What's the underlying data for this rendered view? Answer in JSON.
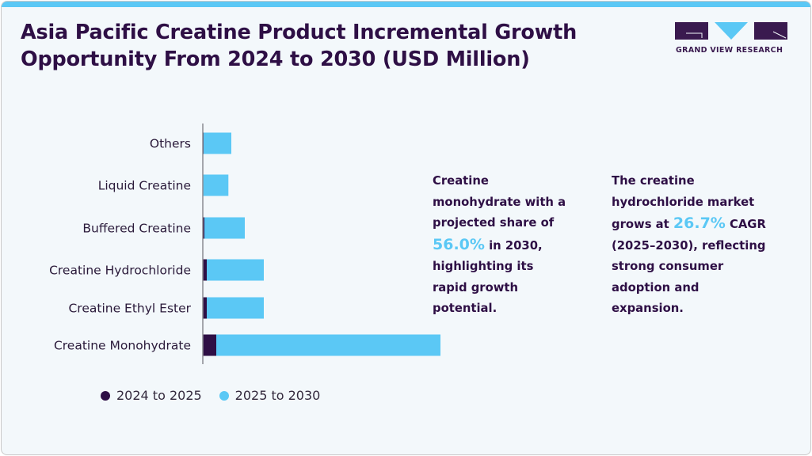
{
  "header": {
    "title_line1": "Asia Pacific Creatine Product Incremental Growth",
    "title_line2": "Opportunity From 2024 to 2030 (USD Million)"
  },
  "logo": {
    "text": "GRAND VIEW RESEARCH",
    "colors": {
      "dark": "#3a1a4f",
      "accent": "#5bc8f5"
    }
  },
  "colors": {
    "series_2024_2025": "#2e0f45",
    "series_2025_2030": "#5bc8f5",
    "title": "#2e0f45",
    "accent_bar": "#5bc8f5"
  },
  "chart_data": {
    "type": "bar",
    "orientation": "horizontal",
    "stacked": true,
    "title": "Asia Pacific Creatine Product Incremental Growth Opportunity From 2024 to 2030 (USD Million)",
    "xlabel": "",
    "ylabel": "",
    "units": "relative (no axis values shown)",
    "categories": [
      "Others",
      "Liquid Creatine",
      "Buffered Creatine",
      "Creatine Hydrochloride",
      "Creatine Ethyl Ester",
      "Creatine Monohydrate"
    ],
    "series": [
      {
        "name": "2024 to 2025",
        "color": "#2e0f45",
        "values": [
          1,
          0.3,
          2,
          5,
          5,
          17
        ]
      },
      {
        "name": "2025 to 2030",
        "color": "#5bc8f5",
        "values": [
          35,
          32,
          51,
          72,
          72,
          283
        ]
      }
    ],
    "xlim": [
      0,
      300
    ],
    "grid": false,
    "axis_ticks_shown": false,
    "legend": {
      "position": "bottom-left",
      "entries": [
        "2024 to 2025",
        "2025 to 2030"
      ]
    }
  },
  "notes": [
    {
      "before": "Creatine monohydrate with a projected share of",
      "highlight": "56.0%",
      "after": "in 2030, highlighting its rapid growth potential."
    },
    {
      "before": "The creatine hydrochloride market grows at",
      "highlight": "26.7%",
      "after": "CAGR (2025–2030), reflecting strong consumer adoption and expansion."
    }
  ]
}
